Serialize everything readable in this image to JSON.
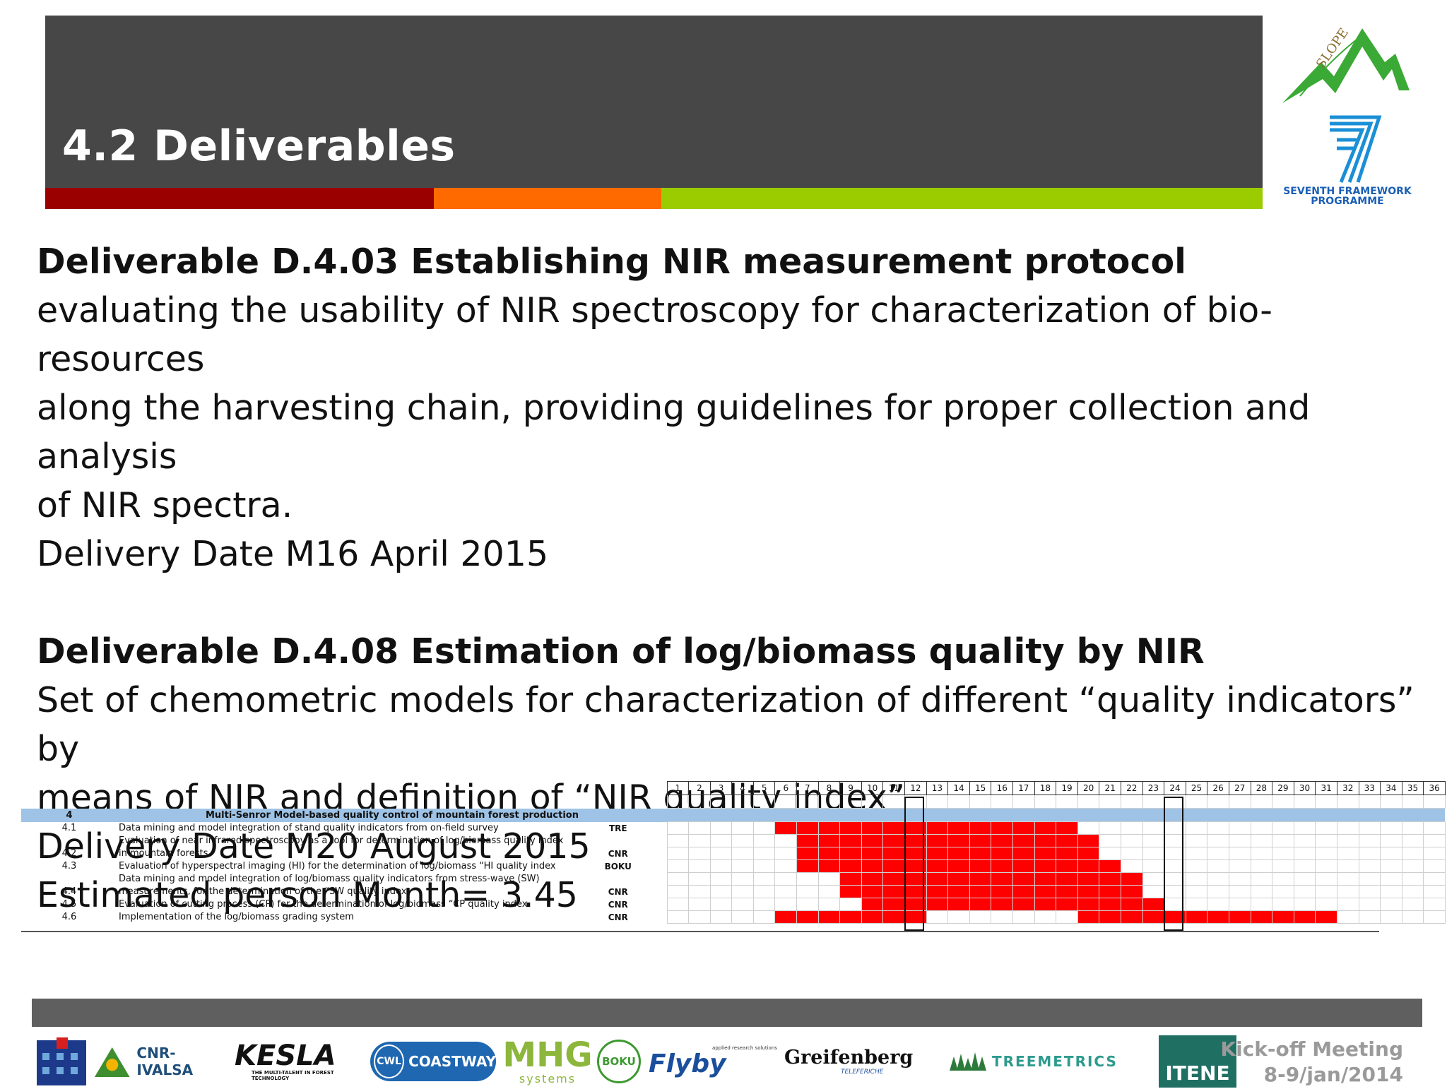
{
  "slide": {
    "title": "4.2 Deliverables",
    "colors": {
      "title_bg": "#474747",
      "stripe_red": "#9a0000",
      "stripe_orange": "#ff6a00",
      "stripe_green": "#9bcc00",
      "gantt_bar": "#ff0000",
      "wp_header": "#9ec3e6"
    }
  },
  "logos_top": {
    "slope": "SLOPE",
    "fp7_line1": "SEVENTH FRAMEWORK",
    "fp7_line2": "PROGRAMME"
  },
  "deliverables": [
    {
      "heading": "Deliverable D.4.03 Establishing NIR measurement protocol",
      "lines": [
        "evaluating the usability of NIR spectroscopy for characterization of bio-resources",
        "along the harvesting chain, providing guidelines for proper collection and analysis",
        "of NIR spectra.",
        "Delivery Date M16 April 2015"
      ]
    },
    {
      "heading": "Deliverable D.4.08 Estimation of log/biomass quality by NIR",
      "lines": [
        "Set of chemometric models for characterization of different “quality indicators” by",
        "means of NIR and definition of “NIR quality index”",
        "Delivery Date M20 August 2015",
        "Estimated person Month= 3.45"
      ]
    }
  ],
  "gantt": {
    "months": [
      "1",
      "2",
      "3",
      "4",
      "5",
      "6",
      "7",
      "8",
      "9",
      "10",
      "11",
      "12",
      "13",
      "14",
      "15",
      "16",
      "17",
      "18",
      "19",
      "20",
      "21",
      "22",
      "23",
      "24",
      "25",
      "26",
      "27",
      "28",
      "29",
      "30",
      "31",
      "32",
      "33",
      "34",
      "35",
      "36"
    ],
    "milestone_months": [
      12,
      24
    ],
    "wp": {
      "id": "4",
      "title": "Multi-Senror Model-based quality control of mountain forest production"
    },
    "tasks": [
      {
        "id": "4.1",
        "desc": [
          "Data mining and model integration of stand quality indicators from on-field survey"
        ],
        "partner": "TRE",
        "start": 6,
        "end": 19
      },
      {
        "id": "4.2",
        "desc": [
          "Evaluation of near infrared spectroscopy as a tool for determination of log/biomass quality index",
          "in mountain forests"
        ],
        "partner": "CNR",
        "start": 7,
        "end": 20
      },
      {
        "id": "4.3",
        "desc": [
          "Evaluation of hyperspectral imaging (HI) for the determination of log/biomass “HI quality index"
        ],
        "partner": "BOKU",
        "start": 7,
        "end": 21
      },
      {
        "id": "4.4",
        "desc": [
          "Data mining and model integration of log/biomass quality indicators from stress-wave (SW)",
          "measurements, for the determination of the “SW quality index"
        ],
        "partner": "CNR",
        "start": 9,
        "end": 22
      },
      {
        "id": "4.5",
        "desc": [
          "Evaluation of cutting process (CP) for the determination of log/biomass “CP quality index"
        ],
        "partner": "CNR",
        "start": 10,
        "end": 23
      },
      {
        "id": "4.6",
        "desc": [
          "Implementation of the log/biomass grading system"
        ],
        "partner": "CNR",
        "ranges": [
          [
            6,
            12
          ],
          [
            20,
            31
          ]
        ]
      }
    ]
  },
  "footer": {
    "partners": [
      "CNR-IVALSA",
      "KESLA",
      "THE MULTI-TALENT IN FOREST TECHNOLOGY",
      "CWL",
      "COASTWAY",
      "MHG",
      "systems",
      "BOKU",
      "Flyby",
      "applied research solutions",
      "Greifenberg",
      "TELEFERICHE",
      "TREEMETRICS",
      "ITENE"
    ],
    "event_line1": "Kick-off Meeting",
    "event_line2": "8-9/jan/2014"
  }
}
